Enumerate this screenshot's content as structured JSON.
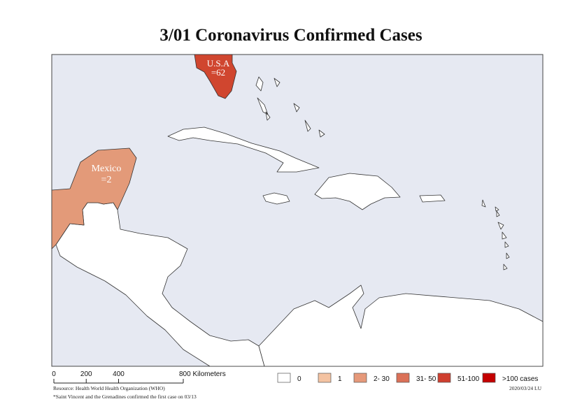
{
  "header": {
    "title": "3/01 Coronavirus Confirmed Cases"
  },
  "map": {
    "regions": [
      {
        "name": "usa",
        "color": "#d0462f",
        "label": [
          "U.S.A",
          "=62"
        ]
      },
      {
        "name": "mexico",
        "color": "#e39a79",
        "label": [
          "Mexico",
          "=2"
        ]
      }
    ],
    "background": "#e6e9f2",
    "land_color": "#ffffff"
  },
  "scale_bar": {
    "ticks": [
      {
        "value": 0,
        "label": "0"
      },
      {
        "value": 200,
        "label": "200"
      },
      {
        "value": 400,
        "label": "400"
      },
      {
        "value": 800,
        "label": "800 Kilometers"
      }
    ]
  },
  "legend": [
    {
      "label": "0",
      "color": "#ffffff"
    },
    {
      "label": "1",
      "color": "#f4c3a2"
    },
    {
      "label": "2- 30",
      "color": "#e6997a"
    },
    {
      "label": "31- 50",
      "color": "#db7158"
    },
    {
      "label": "51-100",
      "color": "#cf3f2f"
    },
    {
      "label": ">100 cases",
      "color": "#c40000"
    }
  ],
  "footer": {
    "source": "Resource: Health World Health Organization (WHO)",
    "note": "*Saint Vincent and the Grenadines confirmed the first case on 03/13",
    "stamp": "2020/03/24 LU"
  }
}
